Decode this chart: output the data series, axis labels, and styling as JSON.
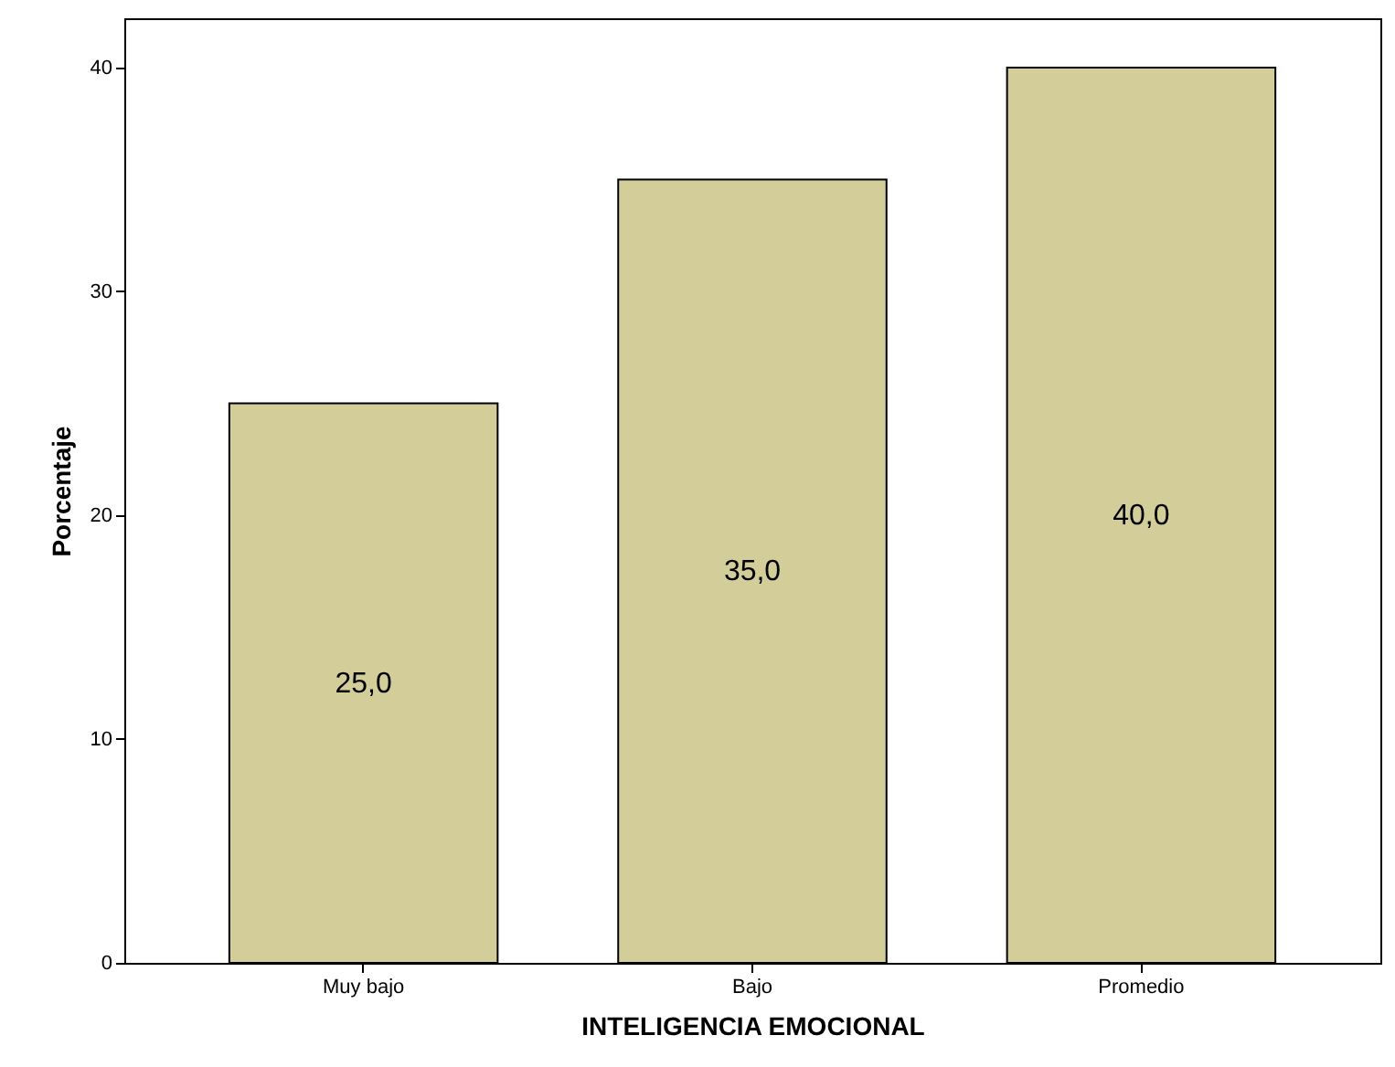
{
  "chart_data": {
    "type": "bar",
    "xlabel": "INTELIGENCIA EMOCIONAL",
    "ylabel": "Porcentaje",
    "categories": [
      "Muy bajo",
      "Bajo",
      "Promedio"
    ],
    "values": [
      25,
      35,
      40
    ],
    "value_labels": [
      "25,0",
      "35,0",
      "40,0"
    ],
    "color": "#d3ce99",
    "ylim": [
      0,
      42.2
    ],
    "yticks": [
      0,
      10,
      20,
      30,
      40
    ],
    "grid": false
  }
}
